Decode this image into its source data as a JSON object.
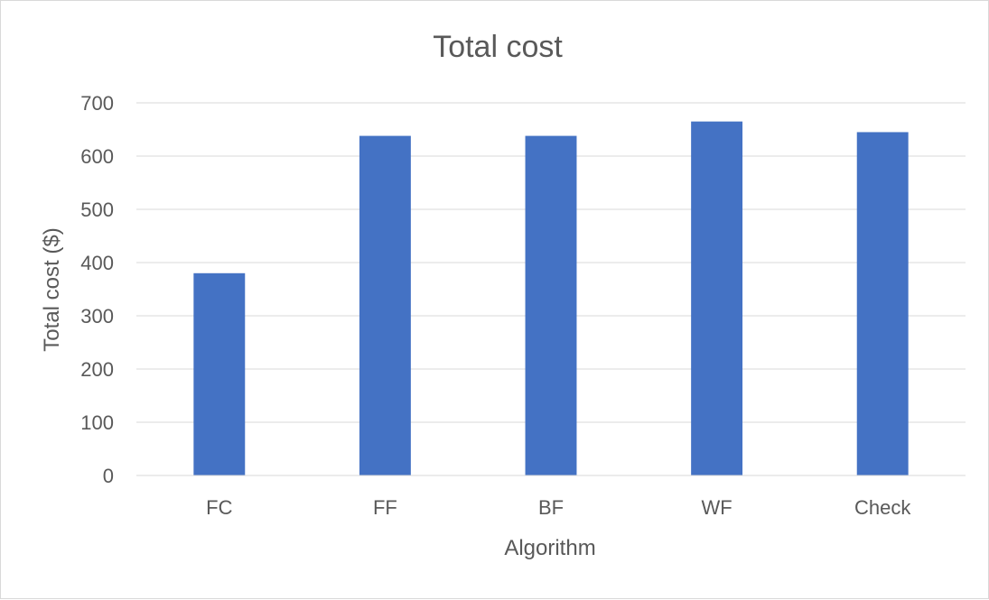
{
  "chart_data": {
    "type": "bar",
    "title": "Total cost",
    "xlabel": "Algorithm",
    "ylabel": "Total cost ($)",
    "categories": [
      "FC",
      "FF",
      "BF",
      "WF",
      "Check"
    ],
    "series": [
      {
        "values": [
          380,
          638,
          638,
          665,
          645
        ],
        "color": "#4472C4"
      }
    ],
    "ylim": [
      0,
      700
    ],
    "yticks": [
      0,
      100,
      200,
      300,
      400,
      500,
      600,
      700
    ],
    "grid": true,
    "legend": "none"
  }
}
